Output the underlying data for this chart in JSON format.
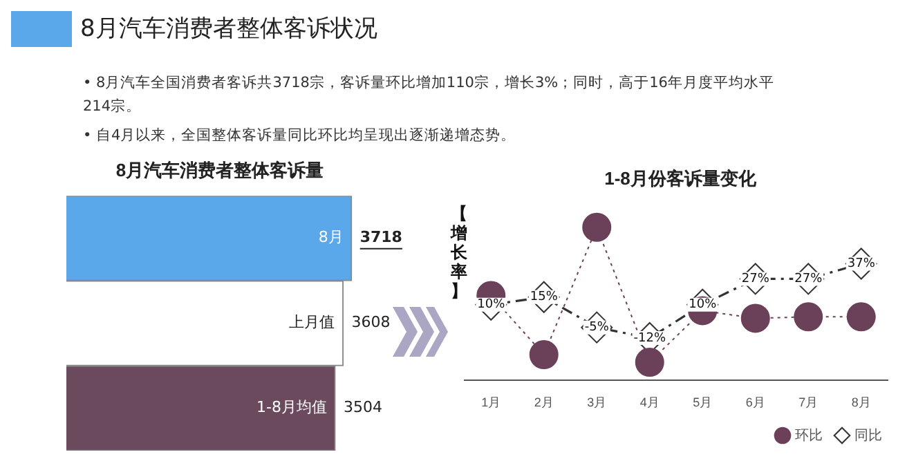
{
  "chart_data": [
    {
      "type": "other",
      "title": "8月汽车消费者整体客诉状况",
      "annotations": [
        "• 8月汽车全国消费者客诉共3718宗，客诉量环比增加110宗，增长3%；同时，高于16年月度平均水平214宗。",
        "• 自4月以来，全国整体客诉量同比环比均呈现出逐渐递增态势。"
      ]
    },
    {
      "type": "bar",
      "orientation": "horizontal",
      "title": "8月汽车消费者整体客诉量",
      "categories": [
        "8月",
        "上月值",
        "1-8月均值"
      ],
      "values": [
        3718,
        3608,
        3504
      ],
      "colors": [
        "#5aa7ea",
        "#ffffff",
        "#6b4a5e"
      ],
      "data_labels": true,
      "tick_labels": false
    },
    {
      "type": "line",
      "title": "1-8月份客诉量变化",
      "ylabel": "【增长率】",
      "categories": [
        "1月",
        "2月",
        "3月",
        "4月",
        "5月",
        "6月",
        "7月",
        "8月"
      ],
      "legend": "bottom right",
      "tick_labels": "x",
      "series": [
        {
          "name": "环比",
          "color": "#6b4059",
          "marker": "circle",
          "line_style": "dotted",
          "values": [
            16,
            -23,
            61,
            -28,
            6,
            1,
            2,
            2
          ]
        },
        {
          "name": "同比",
          "color": "#333333",
          "marker": "diamond",
          "line_style": "dashed",
          "values": [
            10,
            15,
            -5,
            -12,
            10,
            27,
            27,
            37
          ],
          "value_labels": [
            "10%",
            "15%",
            "-5%",
            "-12%",
            "10%",
            "27%",
            "27%",
            "37%"
          ]
        }
      ]
    }
  ]
}
